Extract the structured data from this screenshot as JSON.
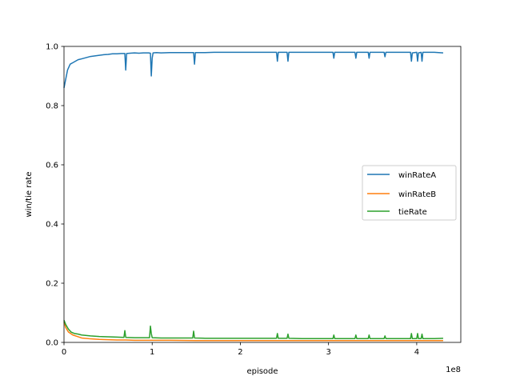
{
  "chart_data": {
    "type": "line",
    "xlabel": "episode",
    "ylabel": "win/tie rate",
    "x_offset_label": "1e8",
    "xlim": [
      0,
      4.5
    ],
    "ylim": [
      0,
      1.0
    ],
    "x_ticks": [
      0,
      1,
      2,
      3,
      4
    ],
    "x_tick_labels": [
      "0",
      "1",
      "2",
      "3",
      "4"
    ],
    "y_ticks": [
      0.0,
      0.2,
      0.4,
      0.6,
      0.8,
      1.0
    ],
    "y_tick_labels": [
      "0.0",
      "0.2",
      "0.4",
      "0.6",
      "0.8",
      "1.0"
    ],
    "grid": false,
    "legend_position": "center-right",
    "series": [
      {
        "name": "winRateA",
        "color": "#1f77b4",
        "points": [
          [
            0.0,
            0.86
          ],
          [
            0.02,
            0.89
          ],
          [
            0.04,
            0.92
          ],
          [
            0.07,
            0.94
          ],
          [
            0.1,
            0.945
          ],
          [
            0.13,
            0.95
          ],
          [
            0.16,
            0.955
          ],
          [
            0.2,
            0.958
          ],
          [
            0.25,
            0.962
          ],
          [
            0.3,
            0.966
          ],
          [
            0.35,
            0.968
          ],
          [
            0.4,
            0.97
          ],
          [
            0.45,
            0.972
          ],
          [
            0.5,
            0.973
          ],
          [
            0.55,
            0.975
          ],
          [
            0.6,
            0.975
          ],
          [
            0.65,
            0.976
          ],
          [
            0.69,
            0.976
          ],
          [
            0.7,
            0.92
          ],
          [
            0.71,
            0.976
          ],
          [
            0.75,
            0.977
          ],
          [
            0.8,
            0.978
          ],
          [
            0.85,
            0.977
          ],
          [
            0.9,
            0.978
          ],
          [
            0.96,
            0.978
          ],
          [
            0.98,
            0.977
          ],
          [
            0.99,
            0.9
          ],
          [
            1.0,
            0.96
          ],
          [
            1.01,
            0.978
          ],
          [
            1.05,
            0.979
          ],
          [
            1.1,
            0.978
          ],
          [
            1.2,
            0.979
          ],
          [
            1.3,
            0.979
          ],
          [
            1.4,
            0.979
          ],
          [
            1.47,
            0.979
          ],
          [
            1.48,
            0.94
          ],
          [
            1.49,
            0.979
          ],
          [
            1.6,
            0.979
          ],
          [
            1.7,
            0.98
          ],
          [
            1.8,
            0.98
          ],
          [
            1.9,
            0.98
          ],
          [
            2.0,
            0.98
          ],
          [
            2.1,
            0.98
          ],
          [
            2.2,
            0.98
          ],
          [
            2.3,
            0.98
          ],
          [
            2.41,
            0.98
          ],
          [
            2.42,
            0.95
          ],
          [
            2.43,
            0.98
          ],
          [
            2.5,
            0.98
          ],
          [
            2.53,
            0.98
          ],
          [
            2.54,
            0.95
          ],
          [
            2.55,
            0.98
          ],
          [
            2.7,
            0.98
          ],
          [
            2.8,
            0.98
          ],
          [
            2.9,
            0.98
          ],
          [
            3.0,
            0.98
          ],
          [
            3.05,
            0.98
          ],
          [
            3.06,
            0.96
          ],
          [
            3.07,
            0.98
          ],
          [
            3.2,
            0.98
          ],
          [
            3.3,
            0.98
          ],
          [
            3.31,
            0.96
          ],
          [
            3.32,
            0.98
          ],
          [
            3.45,
            0.98
          ],
          [
            3.46,
            0.96
          ],
          [
            3.47,
            0.98
          ],
          [
            3.6,
            0.98
          ],
          [
            3.63,
            0.98
          ],
          [
            3.64,
            0.965
          ],
          [
            3.65,
            0.98
          ],
          [
            3.8,
            0.98
          ],
          [
            3.9,
            0.98
          ],
          [
            3.93,
            0.98
          ],
          [
            3.94,
            0.95
          ],
          [
            3.95,
            0.978
          ],
          [
            4.0,
            0.98
          ],
          [
            4.01,
            0.95
          ],
          [
            4.02,
            0.978
          ],
          [
            4.05,
            0.98
          ],
          [
            4.06,
            0.95
          ],
          [
            4.07,
            0.98
          ],
          [
            4.1,
            0.98
          ],
          [
            4.2,
            0.98
          ],
          [
            4.3,
            0.978
          ]
        ]
      },
      {
        "name": "winRateB",
        "color": "#ff7f0e",
        "points": [
          [
            0.0,
            0.07
          ],
          [
            0.02,
            0.05
          ],
          [
            0.05,
            0.035
          ],
          [
            0.1,
            0.025
          ],
          [
            0.15,
            0.02
          ],
          [
            0.2,
            0.015
          ],
          [
            0.3,
            0.012
          ],
          [
            0.4,
            0.01
          ],
          [
            0.5,
            0.009
          ],
          [
            0.6,
            0.008
          ],
          [
            0.7,
            0.008
          ],
          [
            0.8,
            0.007
          ],
          [
            1.0,
            0.007
          ],
          [
            1.2,
            0.007
          ],
          [
            1.5,
            0.006
          ],
          [
            2.0,
            0.006
          ],
          [
            2.5,
            0.006
          ],
          [
            3.0,
            0.006
          ],
          [
            3.5,
            0.006
          ],
          [
            4.0,
            0.006
          ],
          [
            4.3,
            0.006
          ]
        ]
      },
      {
        "name": "tieRate",
        "color": "#2ca02c",
        "points": [
          [
            0.0,
            0.075
          ],
          [
            0.02,
            0.06
          ],
          [
            0.05,
            0.045
          ],
          [
            0.08,
            0.035
          ],
          [
            0.12,
            0.03
          ],
          [
            0.16,
            0.028
          ],
          [
            0.2,
            0.025
          ],
          [
            0.3,
            0.022
          ],
          [
            0.4,
            0.02
          ],
          [
            0.5,
            0.019
          ],
          [
            0.6,
            0.018
          ],
          [
            0.68,
            0.017
          ],
          [
            0.69,
            0.04
          ],
          [
            0.7,
            0.017
          ],
          [
            0.8,
            0.016
          ],
          [
            0.9,
            0.016
          ],
          [
            0.97,
            0.016
          ],
          [
            0.98,
            0.055
          ],
          [
            0.99,
            0.03
          ],
          [
            1.0,
            0.016
          ],
          [
            1.1,
            0.015
          ],
          [
            1.2,
            0.015
          ],
          [
            1.3,
            0.015
          ],
          [
            1.46,
            0.015
          ],
          [
            1.47,
            0.038
          ],
          [
            1.48,
            0.015
          ],
          [
            1.6,
            0.014
          ],
          [
            1.8,
            0.014
          ],
          [
            2.0,
            0.014
          ],
          [
            2.2,
            0.014
          ],
          [
            2.41,
            0.014
          ],
          [
            2.42,
            0.03
          ],
          [
            2.43,
            0.014
          ],
          [
            2.53,
            0.014
          ],
          [
            2.54,
            0.028
          ],
          [
            2.55,
            0.014
          ],
          [
            2.7,
            0.013
          ],
          [
            2.9,
            0.013
          ],
          [
            3.05,
            0.013
          ],
          [
            3.06,
            0.025
          ],
          [
            3.07,
            0.013
          ],
          [
            3.3,
            0.013
          ],
          [
            3.31,
            0.025
          ],
          [
            3.32,
            0.013
          ],
          [
            3.45,
            0.013
          ],
          [
            3.46,
            0.025
          ],
          [
            3.47,
            0.013
          ],
          [
            3.63,
            0.013
          ],
          [
            3.64,
            0.022
          ],
          [
            3.65,
            0.013
          ],
          [
            3.93,
            0.013
          ],
          [
            3.94,
            0.03
          ],
          [
            3.95,
            0.013
          ],
          [
            4.0,
            0.013
          ],
          [
            4.01,
            0.03
          ],
          [
            4.02,
            0.013
          ],
          [
            4.05,
            0.013
          ],
          [
            4.06,
            0.028
          ],
          [
            4.07,
            0.013
          ],
          [
            4.2,
            0.013
          ],
          [
            4.3,
            0.014
          ]
        ]
      }
    ]
  }
}
